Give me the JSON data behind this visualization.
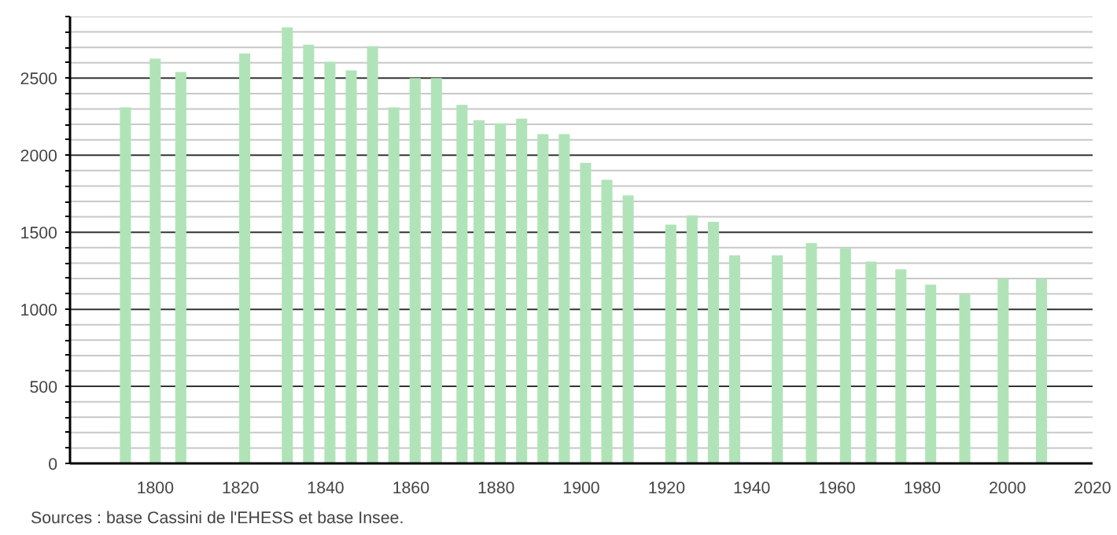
{
  "chart_data": {
    "type": "bar",
    "x": [
      1793,
      1800,
      1806,
      1821,
      1831,
      1836,
      1841,
      1846,
      1851,
      1856,
      1861,
      1866,
      1872,
      1876,
      1881,
      1886,
      1891,
      1896,
      1901,
      1906,
      1911,
      1921,
      1926,
      1931,
      1936,
      1946,
      1954,
      1962,
      1968,
      1975,
      1982,
      1990,
      1999,
      2008
    ],
    "values": [
      2310,
      2627,
      2540,
      2660,
      2830,
      2717,
      2607,
      2550,
      2707,
      2310,
      2500,
      2500,
      2327,
      2227,
      2207,
      2237,
      2137,
      2137,
      1950,
      1840,
      1740,
      1550,
      1610,
      1567,
      1350,
      1350,
      1430,
      1397,
      1310,
      1260,
      1160,
      1097,
      1197,
      1197
    ],
    "color": "#b0e4b8",
    "xlim": [
      1780,
      2020
    ],
    "xticks": [
      1800,
      1820,
      1840,
      1860,
      1880,
      1900,
      1920,
      1940,
      1960,
      1980,
      2000,
      2020
    ],
    "ylim": [
      0,
      2900
    ],
    "yticks": [
      0,
      {
        "value": 100,
        "label": null
      },
      {
        "value": 200,
        "label": null
      },
      {
        "value": 300,
        "label": null
      },
      {
        "value": 400,
        "label": null
      },
      500,
      {
        "value": 600,
        "label": null
      },
      {
        "value": 700,
        "label": null
      },
      {
        "value": 800,
        "label": null
      },
      {
        "value": 900,
        "label": null
      },
      1000,
      {
        "value": 1100,
        "label": null
      },
      {
        "value": 1200,
        "label": null
      },
      {
        "value": 1300,
        "label": null
      },
      {
        "value": 1400,
        "label": null
      },
      1500,
      {
        "value": 1600,
        "label": null
      },
      {
        "value": 1700,
        "label": null
      },
      {
        "value": 1800,
        "label": null
      },
      {
        "value": 1900,
        "label": null
      },
      2000,
      {
        "value": 2100,
        "label": null
      },
      {
        "value": 2200,
        "label": null
      },
      {
        "value": 2300,
        "label": null
      },
      {
        "value": 2400,
        "label": null
      },
      2500,
      {
        "value": 2600,
        "label": null
      },
      {
        "value": 2700,
        "label": null
      },
      {
        "value": 2800,
        "label": null
      },
      {
        "value": 2900,
        "label": null
      }
    ],
    "grid": "y",
    "annotations": [
      "Sources : base Cassini de l'EHESS et base Insee."
    ]
  }
}
